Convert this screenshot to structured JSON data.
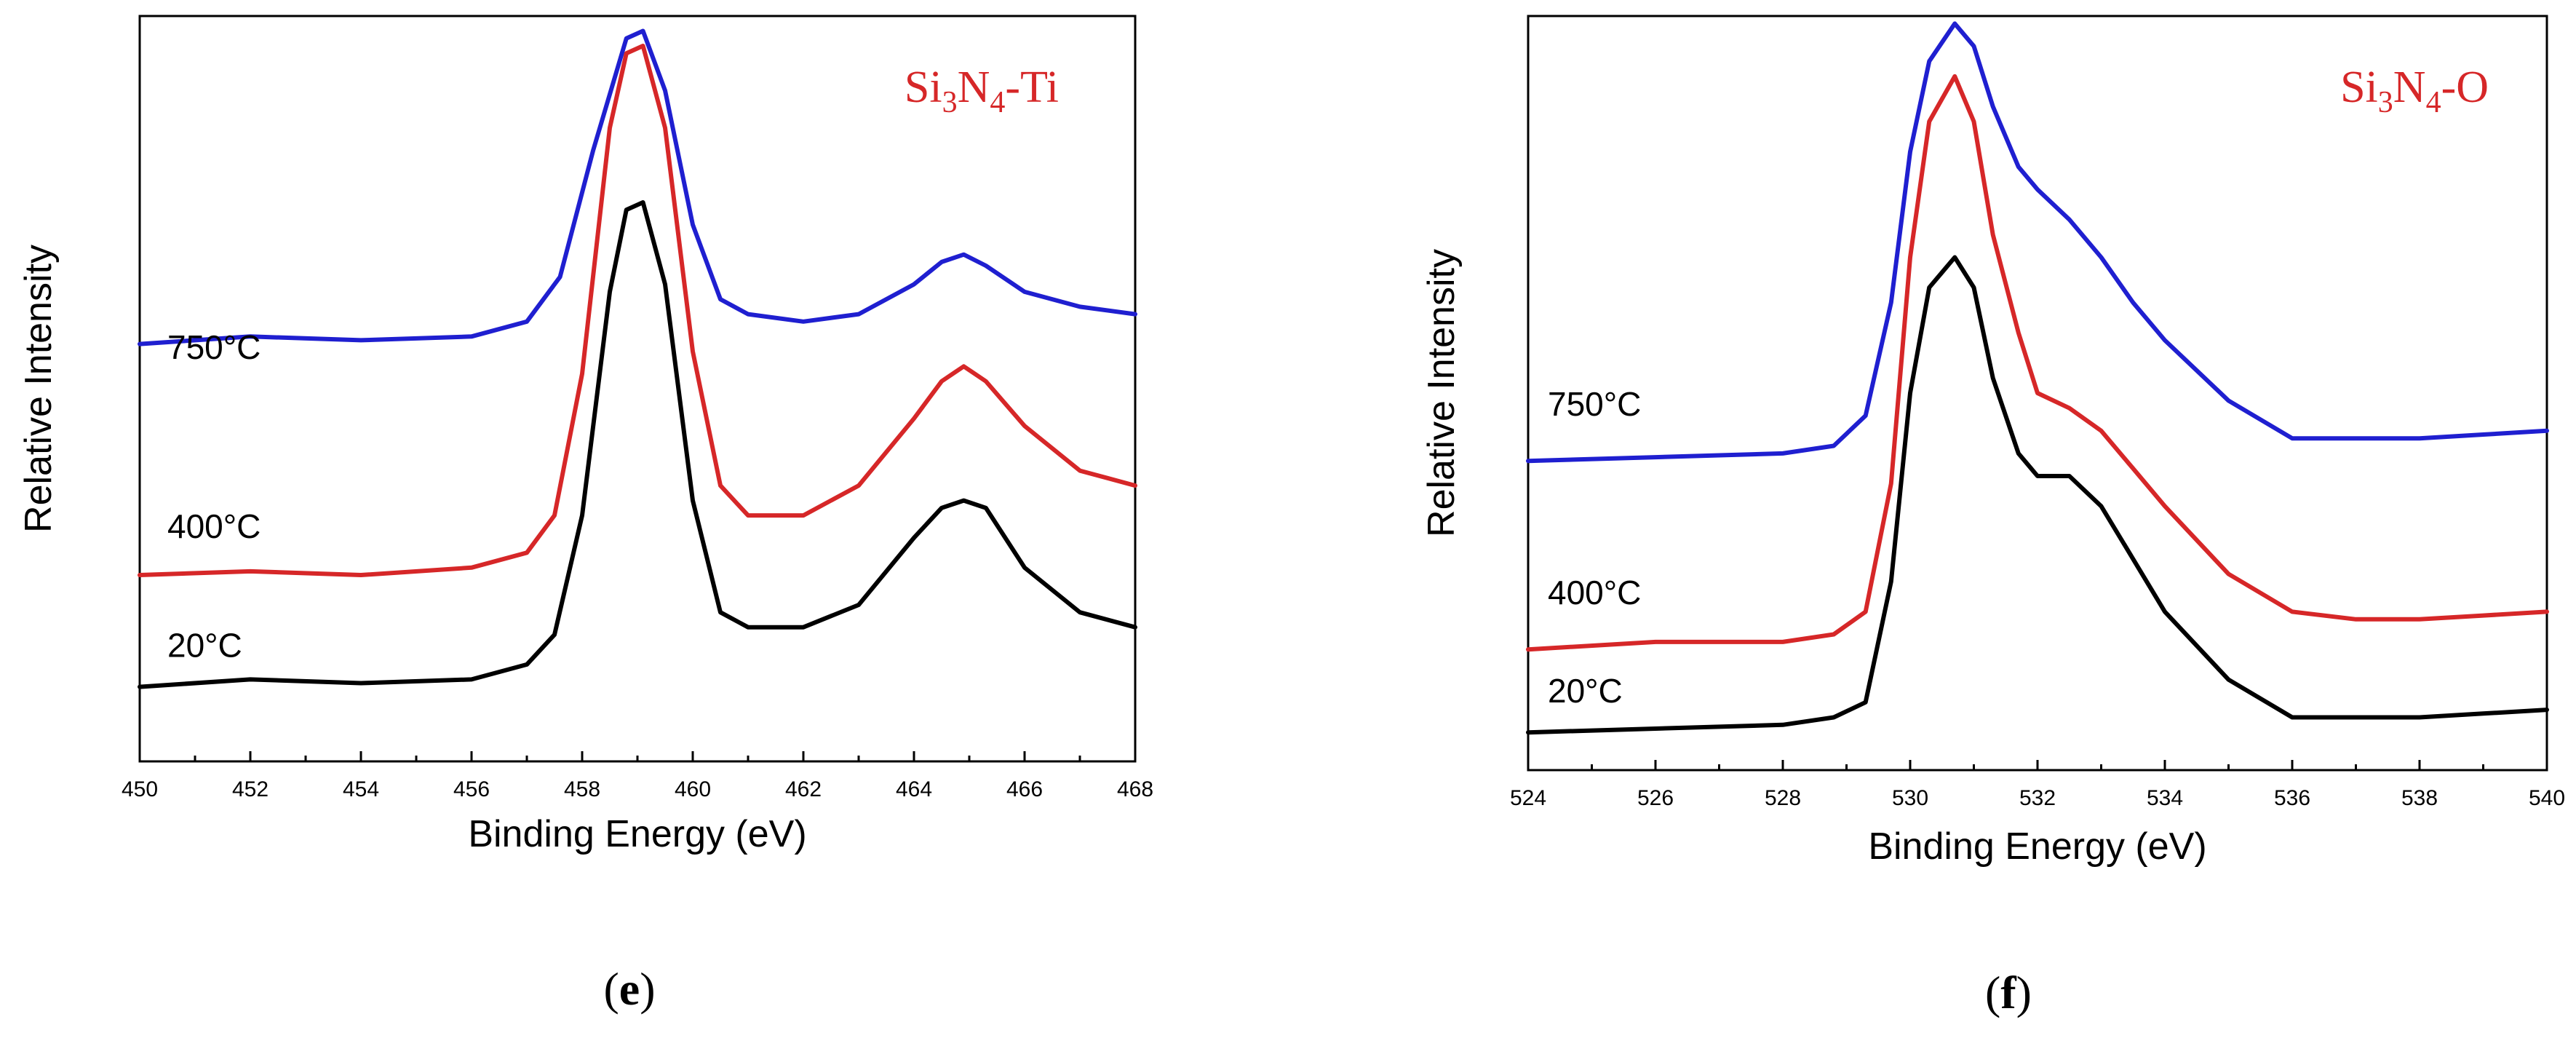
{
  "chart_data": [
    {
      "type": "line",
      "panel_label": "e",
      "title": {
        "main": "Si",
        "sub1": "3",
        "mid": "N",
        "sub2": "4",
        "suffix": "-Ti",
        "color": "#d62728"
      },
      "xlabel": "Binding Energy (eV)",
      "ylabel": "Relative Intensity",
      "xlim": [
        450,
        468
      ],
      "ylim": [
        0,
        1
      ],
      "xticks": [
        450,
        452,
        454,
        456,
        458,
        460,
        462,
        464,
        466,
        468
      ],
      "yticks": [],
      "grid": false,
      "series": [
        {
          "name": "750°C",
          "color": "#1f1fd0",
          "x": [
            450,
            452,
            454,
            456,
            457,
            457.6,
            458.2,
            458.8,
            459.1,
            459.5,
            460,
            460.5,
            461,
            462,
            463,
            464,
            464.5,
            464.9,
            465.3,
            466,
            467,
            468
          ],
          "y": [
            0.56,
            0.57,
            0.565,
            0.57,
            0.59,
            0.65,
            0.82,
            0.97,
            0.98,
            0.9,
            0.72,
            0.62,
            0.6,
            0.59,
            0.6,
            0.64,
            0.67,
            0.68,
            0.665,
            0.63,
            0.61,
            0.6
          ]
        },
        {
          "name": "400°C",
          "color": "#d62728",
          "x": [
            450,
            452,
            454,
            456,
            457,
            457.5,
            458,
            458.5,
            458.8,
            459.1,
            459.5,
            460,
            460.5,
            461,
            462,
            463,
            464,
            464.5,
            464.9,
            465.3,
            466,
            467,
            468
          ],
          "y": [
            0.25,
            0.255,
            0.25,
            0.26,
            0.28,
            0.33,
            0.52,
            0.85,
            0.95,
            0.96,
            0.85,
            0.55,
            0.37,
            0.33,
            0.33,
            0.37,
            0.46,
            0.51,
            0.53,
            0.51,
            0.45,
            0.39,
            0.37
          ]
        },
        {
          "name": "20°C",
          "color": "#000000",
          "x": [
            450,
            452,
            454,
            456,
            457,
            457.5,
            458,
            458.5,
            458.8,
            459.1,
            459.5,
            460,
            460.5,
            461,
            462,
            463,
            464,
            464.5,
            464.9,
            465.3,
            466,
            467,
            468
          ],
          "y": [
            0.1,
            0.11,
            0.105,
            0.11,
            0.13,
            0.17,
            0.33,
            0.63,
            0.74,
            0.75,
            0.64,
            0.35,
            0.2,
            0.18,
            0.18,
            0.21,
            0.3,
            0.34,
            0.35,
            0.34,
            0.26,
            0.2,
            0.18
          ]
        }
      ]
    },
    {
      "type": "line",
      "panel_label": "f",
      "title": {
        "main": "Si",
        "sub1": "3",
        "mid": "N",
        "sub2": "4",
        "suffix": "-O",
        "color": "#d62728"
      },
      "xlabel": "Binding Energy (eV)",
      "ylabel": "Relative Intensity",
      "xlim": [
        524,
        540
      ],
      "ylim": [
        0,
        1
      ],
      "xticks": [
        524,
        526,
        528,
        530,
        532,
        534,
        536,
        538,
        540
      ],
      "yticks": [],
      "grid": false,
      "series": [
        {
          "name": "750°C",
          "color": "#1f1fd0",
          "x": [
            524,
            526,
            528,
            528.8,
            529.3,
            529.7,
            530,
            530.3,
            530.7,
            531,
            531.3,
            531.7,
            532,
            532.5,
            533,
            533.5,
            534,
            535,
            536,
            537,
            538,
            539,
            540
          ],
          "y": [
            0.41,
            0.415,
            0.42,
            0.43,
            0.47,
            0.62,
            0.82,
            0.94,
            0.99,
            0.96,
            0.88,
            0.8,
            0.77,
            0.73,
            0.68,
            0.62,
            0.57,
            0.49,
            0.44,
            0.44,
            0.44,
            0.445,
            0.45
          ]
        },
        {
          "name": "400°C",
          "color": "#d62728",
          "x": [
            524,
            526,
            528,
            528.8,
            529.3,
            529.7,
            530,
            530.3,
            530.7,
            531,
            531.3,
            531.7,
            532,
            532.5,
            533,
            533.5,
            534,
            535,
            536,
            537,
            538,
            539,
            540
          ],
          "y": [
            0.16,
            0.17,
            0.17,
            0.18,
            0.21,
            0.38,
            0.68,
            0.86,
            0.92,
            0.86,
            0.71,
            0.58,
            0.5,
            0.48,
            0.45,
            0.4,
            0.35,
            0.26,
            0.21,
            0.2,
            0.2,
            0.205,
            0.21
          ]
        },
        {
          "name": "20°C",
          "color": "#000000",
          "x": [
            524,
            526,
            528,
            528.8,
            529.3,
            529.7,
            530,
            530.3,
            530.7,
            531,
            531.3,
            531.7,
            532,
            532.5,
            533,
            533.5,
            534,
            535,
            536,
            537,
            538,
            539,
            540
          ],
          "y": [
            0.05,
            0.055,
            0.06,
            0.07,
            0.09,
            0.25,
            0.5,
            0.64,
            0.68,
            0.64,
            0.52,
            0.42,
            0.39,
            0.39,
            0.35,
            0.28,
            0.21,
            0.12,
            0.07,
            0.07,
            0.07,
            0.075,
            0.08
          ]
        }
      ]
    }
  ]
}
